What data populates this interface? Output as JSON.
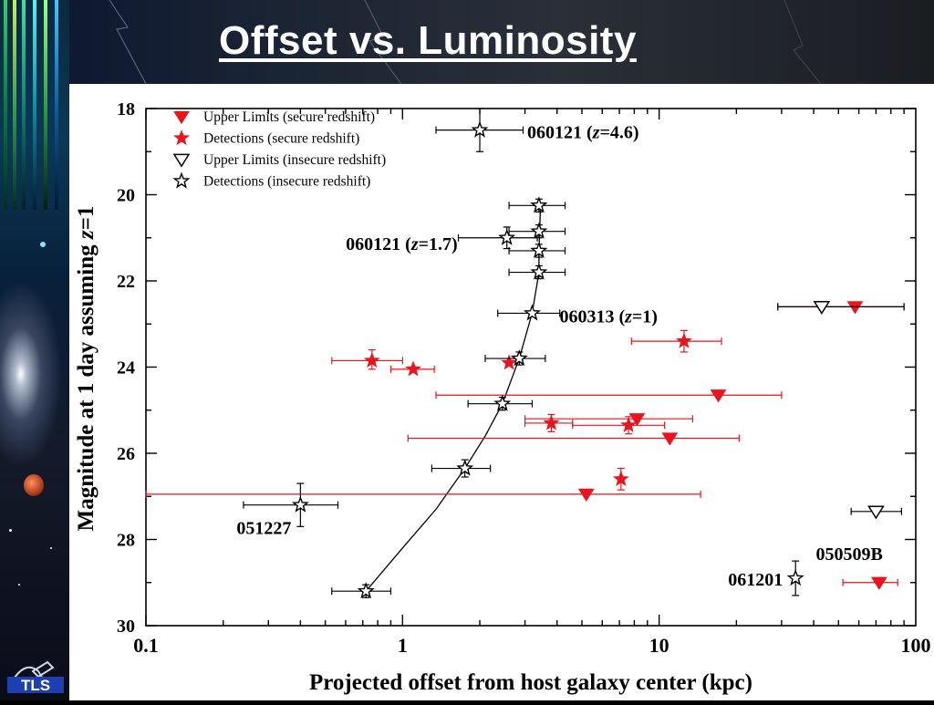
{
  "slide": {
    "title": "Offset vs. Luminosity",
    "logo_text": "TLS"
  },
  "colors": {
    "secure": "#e8141e",
    "insecure": "#000000",
    "curve": "#000000"
  },
  "chart_data": {
    "type": "scatter",
    "xlabel": "Projected offset from host galaxy center (kpc)",
    "ylabel": "Magnitude at 1 day assuming z=1",
    "xscale": "log",
    "xlim": [
      0.1,
      100
    ],
    "ylim": [
      18,
      30
    ],
    "y_inverted": true,
    "xticks": [
      {
        "v": 0.1,
        "label": "0.1"
      },
      {
        "v": 1,
        "label": "1"
      },
      {
        "v": 10,
        "label": "10"
      },
      {
        "v": 100,
        "label": "100"
      }
    ],
    "yticks": [
      {
        "v": 18,
        "label": "18"
      },
      {
        "v": 20,
        "label": "20"
      },
      {
        "v": 22,
        "label": "22"
      },
      {
        "v": 24,
        "label": "24"
      },
      {
        "v": 26,
        "label": "26"
      },
      {
        "v": 28,
        "label": "28"
      },
      {
        "v": 30,
        "label": "30"
      }
    ],
    "legend": {
      "placement": "top-left",
      "entries": [
        {
          "label": "Upper Limits (secure redshift)",
          "marker": "triangle-filled",
          "color": "#e8141e"
        },
        {
          "label": "Detections (secure redshift)",
          "marker": "star-filled",
          "color": "#e8141e"
        },
        {
          "label": "Upper Limits (insecure redshift)",
          "marker": "triangle-open",
          "color": "#000000"
        },
        {
          "label": "Detections (insecure redshift)",
          "marker": "star-open",
          "color": "#000000"
        }
      ]
    },
    "series": [
      {
        "name": "Upper Limits (secure redshift)",
        "marker": "triangle-filled",
        "color": "#e8141e",
        "points": [
          {
            "x": 58,
            "y": 22.6,
            "xerr": [
              29,
              90
            ],
            "yerr": null
          },
          {
            "x": 17,
            "y": 24.65,
            "xerr": [
              1.35,
              30
            ],
            "yerr": null
          },
          {
            "x": 8.2,
            "y": 25.2,
            "xerr": [
              3.0,
              13.5
            ],
            "yerr": null
          },
          {
            "x": 11,
            "y": 25.65,
            "xerr": [
              1.05,
              20.5
            ],
            "yerr": null
          },
          {
            "x": 5.2,
            "y": 26.95,
            "xerr": [
              0.1,
              14.5
            ],
            "yerr": null
          },
          {
            "x": 72,
            "y": 29.0,
            "xerr": [
              52,
              85
            ],
            "yerr": null
          }
        ]
      },
      {
        "name": "Detections (secure redshift)",
        "marker": "star-filled",
        "color": "#e8141e",
        "points": [
          {
            "x": 0.76,
            "y": 23.85,
            "xerr": [
              0.53,
              1.0
            ],
            "yerr": [
              23.6,
              24.05
            ]
          },
          {
            "x": 1.1,
            "y": 24.05,
            "xerr": [
              0.9,
              1.33
            ],
            "yerr": null
          },
          {
            "x": 2.6,
            "y": 23.9,
            "xerr": null,
            "yerr": null
          },
          {
            "x": 12.5,
            "y": 23.4,
            "xerr": [
              7.8,
              17.5
            ],
            "yerr": [
              23.15,
              23.65
            ]
          },
          {
            "x": 3.8,
            "y": 25.3,
            "xerr": [
              3.0,
              4.6
            ],
            "yerr": [
              25.1,
              25.5
            ]
          },
          {
            "x": 7.6,
            "y": 25.35,
            "xerr": [
              4.6,
              10.5
            ],
            "yerr": [
              25.15,
              25.55
            ]
          },
          {
            "x": 7.1,
            "y": 26.6,
            "xerr": null,
            "yerr": [
              26.35,
              26.85
            ]
          }
        ]
      },
      {
        "name": "Upper Limits (insecure redshift)",
        "marker": "triangle-open",
        "color": "#000000",
        "points": [
          {
            "x": 43,
            "y": 22.6,
            "xerr": [
              29,
              90
            ],
            "yerr": null
          },
          {
            "x": 70,
            "y": 27.35,
            "xerr": [
              56,
              88
            ],
            "yerr": null
          }
        ]
      },
      {
        "name": "Detections (insecure redshift)",
        "marker": "star-open",
        "color": "#000000",
        "points": [
          {
            "x": 2.0,
            "y": 18.5,
            "xerr": [
              1.35,
              2.95
            ],
            "yerr": [
              18.0,
              19.0
            ]
          },
          {
            "x": 3.4,
            "y": 20.25,
            "xerr": [
              2.6,
              4.3
            ],
            "yerr": [
              20.1,
              20.4
            ]
          },
          {
            "x": 2.55,
            "y": 21.0,
            "xerr": [
              1.65,
              3.35
            ],
            "yerr": [
              20.75,
              21.25
            ]
          },
          {
            "x": 3.4,
            "y": 20.85,
            "xerr": [
              2.6,
              4.3
            ],
            "yerr": [
              20.7,
              21.0
            ]
          },
          {
            "x": 3.4,
            "y": 21.3,
            "xerr": [
              2.6,
              4.3
            ],
            "yerr": [
              21.15,
              21.45
            ]
          },
          {
            "x": 3.4,
            "y": 21.8,
            "xerr": [
              2.6,
              4.3
            ],
            "yerr": [
              21.65,
              21.95
            ]
          },
          {
            "x": 3.2,
            "y": 22.75,
            "xerr": [
              2.35,
              4.1
            ],
            "yerr": null
          },
          {
            "x": 2.85,
            "y": 23.8,
            "xerr": [
              2.1,
              3.6
            ],
            "yerr": [
              23.65,
              23.95
            ]
          },
          {
            "x": 2.45,
            "y": 24.85,
            "xerr": [
              1.8,
              3.2
            ],
            "yerr": [
              24.7,
              25.0
            ]
          },
          {
            "x": 1.75,
            "y": 26.35,
            "xerr": [
              1.3,
              2.2
            ],
            "yerr": [
              26.15,
              26.55
            ]
          },
          {
            "x": 0.4,
            "y": 27.2,
            "xerr": [
              0.24,
              0.56
            ],
            "yerr": [
              26.7,
              27.7
            ]
          },
          {
            "x": 0.72,
            "y": 29.2,
            "xerr": [
              0.53,
              0.9
            ],
            "yerr": [
              29.05,
              29.35
            ]
          },
          {
            "x": 34,
            "y": 28.9,
            "xerr": null,
            "yerr": [
              28.5,
              29.3
            ]
          }
        ]
      }
    ],
    "curve": {
      "name": "",
      "points": [
        [
          0.72,
          29.2
        ],
        [
          1.0,
          28.2
        ],
        [
          1.35,
          27.3
        ],
        [
          1.75,
          26.35
        ],
        [
          2.1,
          25.6
        ],
        [
          2.45,
          24.85
        ],
        [
          2.85,
          23.8
        ],
        [
          3.2,
          22.75
        ],
        [
          3.4,
          21.8
        ],
        [
          3.4,
          21.3
        ],
        [
          3.45,
          20.25
        ]
      ]
    },
    "annotations": [
      {
        "text": "060121 (z=4.6)",
        "x": 2.0,
        "y": 18.5
      },
      {
        "text": "060121 (z=1.7)",
        "x": 2.55,
        "y": 21.0
      },
      {
        "text": "060313 (z=1)",
        "x": 3.2,
        "y": 22.75
      },
      {
        "text": "051227",
        "x": 0.4,
        "y": 27.2
      },
      {
        "text": "061201",
        "x": 34,
        "y": 28.9
      },
      {
        "text": "050509B",
        "x": 72,
        "y": 29.0
      }
    ]
  }
}
